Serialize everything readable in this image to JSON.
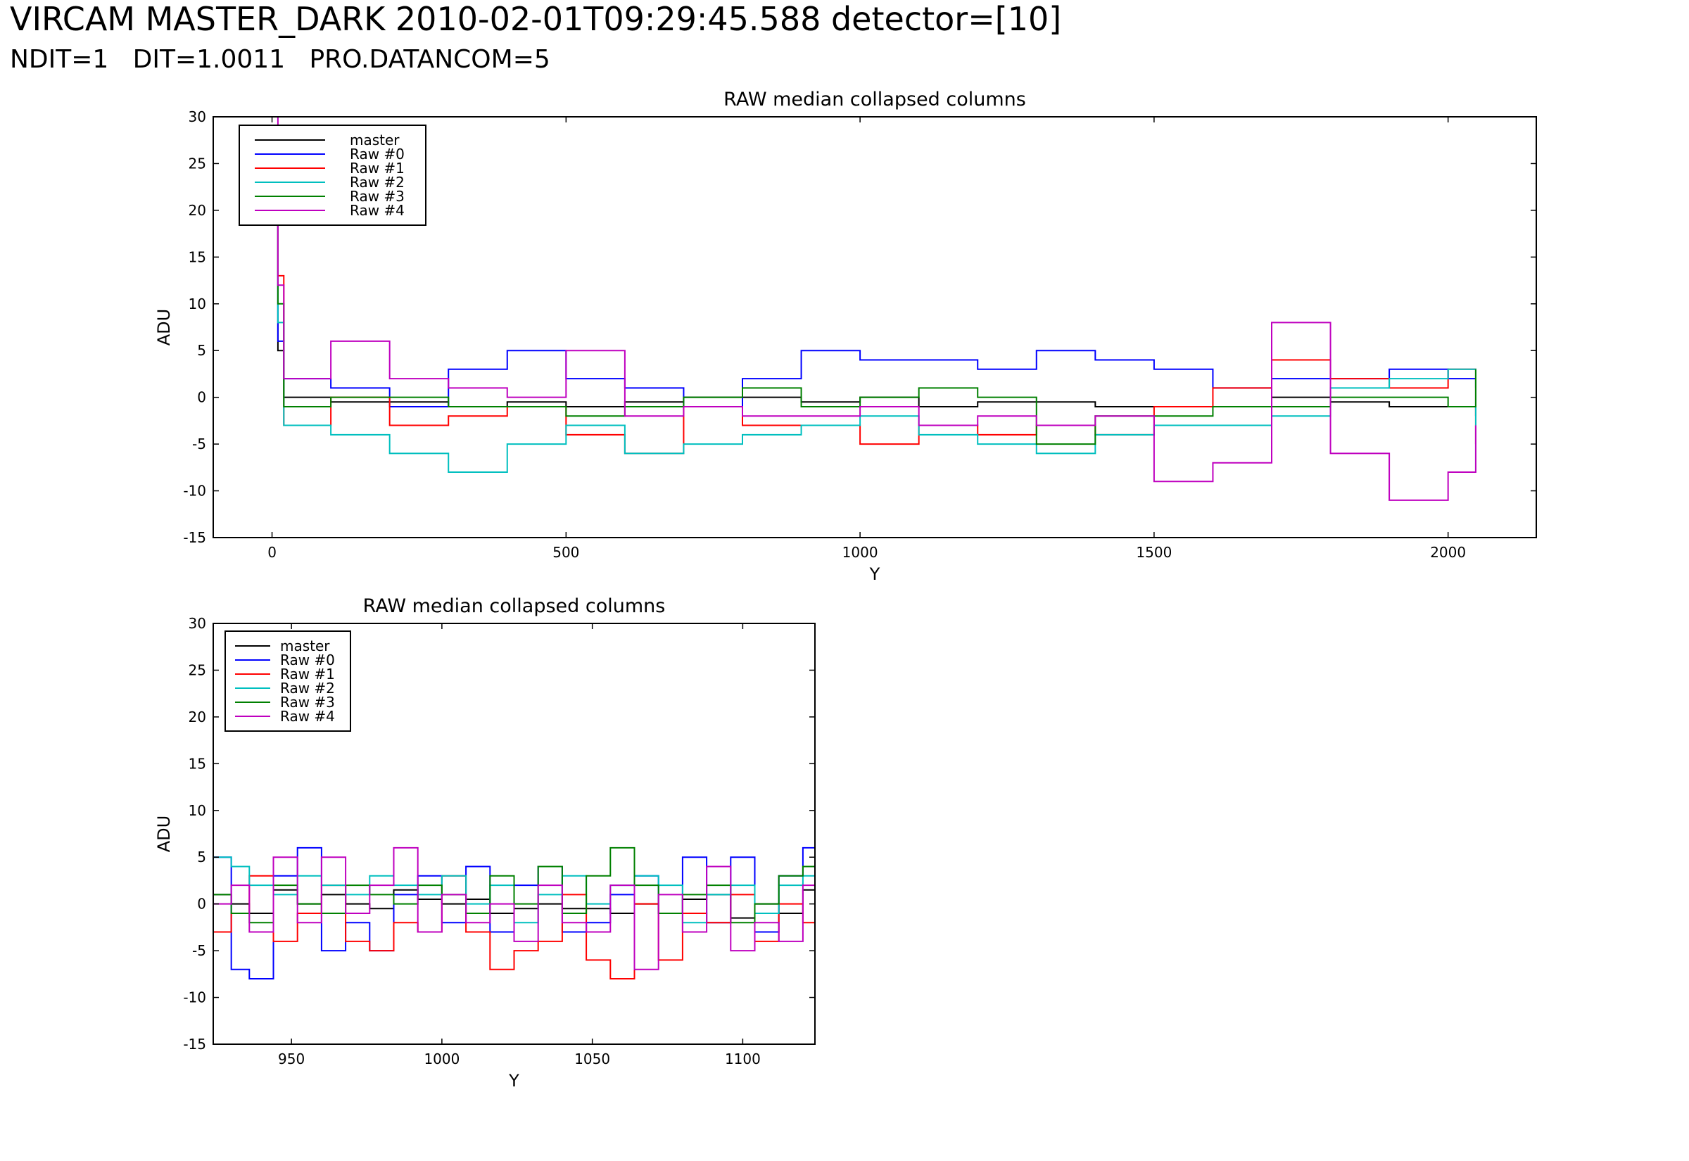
{
  "header": {
    "title": "VIRCAM MASTER_DARK 2010-02-01T09:29:45.588 detector=[10]",
    "subtitle": "NDIT=1   DIT=1.0011   PRO.DATANCOM=5"
  },
  "series_colors": {
    "master": "#000000",
    "Raw #0": "#0000ff",
    "Raw #1": "#ff0000",
    "Raw #2": "#00bfbf",
    "Raw #3": "#008000",
    "Raw #4": "#bf00bf"
  },
  "chart_data": [
    {
      "type": "line",
      "title": "RAW median collapsed columns",
      "xlabel": "Y",
      "ylabel": "ADU",
      "xlim": [
        -100,
        2150
      ],
      "ylim": [
        -15,
        30
      ],
      "xticks": [
        0,
        500,
        1000,
        1500,
        2000
      ],
      "yticks": [
        -15,
        -10,
        -5,
        0,
        5,
        10,
        15,
        20,
        25,
        30
      ],
      "legend_position": "upper-left",
      "legend_entries": [
        "master",
        "Raw #0",
        "Raw #1",
        "Raw #2",
        "Raw #3",
        "Raw #4"
      ],
      "series": [
        {
          "name": "master",
          "x": [
            0,
            10,
            20,
            100,
            200,
            300,
            400,
            500,
            600,
            700,
            800,
            900,
            1000,
            1100,
            1200,
            1300,
            1400,
            1500,
            1600,
            1700,
            1800,
            1900,
            2000,
            2047
          ],
          "values": [
            28,
            5,
            0,
            -0.5,
            -0.5,
            -1,
            -0.5,
            -1,
            -0.5,
            0,
            0,
            -0.5,
            0,
            -1,
            -0.5,
            -0.5,
            -1,
            -1,
            -1,
            0,
            -0.5,
            -1,
            -1,
            -2
          ]
        },
        {
          "name": "Raw #0",
          "x": [
            0,
            10,
            20,
            100,
            200,
            300,
            400,
            500,
            600,
            700,
            800,
            900,
            1000,
            1100,
            1200,
            1300,
            1400,
            1500,
            1600,
            1700,
            1800,
            1900,
            2000,
            2047
          ],
          "values": [
            29,
            6,
            2,
            1,
            -1,
            3,
            5,
            2,
            1,
            -1,
            2,
            5,
            4,
            4,
            3,
            5,
            4,
            3,
            1,
            2,
            2,
            3,
            2,
            1
          ]
        },
        {
          "name": "Raw #1",
          "x": [
            0,
            10,
            20,
            100,
            200,
            300,
            400,
            500,
            600,
            700,
            800,
            900,
            1000,
            1100,
            1200,
            1300,
            1400,
            1500,
            1600,
            1700,
            1800,
            1900,
            2000,
            2047
          ],
          "values": [
            29,
            13,
            -3,
            0,
            -3,
            -2,
            -1,
            -4,
            -6,
            -1,
            -3,
            -3,
            -5,
            -3,
            -4,
            -3,
            -4,
            -1,
            1,
            4,
            2,
            1,
            3,
            -5
          ]
        },
        {
          "name": "Raw #2",
          "x": [
            0,
            10,
            20,
            100,
            200,
            300,
            400,
            500,
            600,
            700,
            800,
            900,
            1000,
            1100,
            1200,
            1300,
            1400,
            1500,
            1600,
            1700,
            1800,
            1900,
            2000,
            2047
          ],
          "values": [
            29,
            8,
            -3,
            -4,
            -6,
            -8,
            -5,
            -3,
            -6,
            -5,
            -4,
            -3,
            -2,
            -4,
            -5,
            -6,
            -4,
            -3,
            -3,
            -2,
            1,
            2,
            3,
            -8
          ]
        },
        {
          "name": "Raw #3",
          "x": [
            0,
            10,
            20,
            100,
            200,
            300,
            400,
            500,
            600,
            700,
            800,
            900,
            1000,
            1100,
            1200,
            1300,
            1400,
            1500,
            1600,
            1700,
            1800,
            1900,
            2000,
            2047
          ],
          "values": [
            29,
            10,
            -1,
            0,
            0,
            -1,
            -1,
            -2,
            -1,
            0,
            1,
            -1,
            0,
            1,
            0,
            -5,
            -2,
            -2,
            -1,
            -1,
            0,
            0,
            -1,
            3
          ]
        },
        {
          "name": "Raw #4",
          "x": [
            0,
            10,
            20,
            100,
            200,
            300,
            400,
            500,
            600,
            700,
            800,
            900,
            1000,
            1100,
            1200,
            1300,
            1400,
            1500,
            1600,
            1700,
            1800,
            1900,
            2000,
            2047
          ],
          "values": [
            30,
            12,
            2,
            6,
            2,
            1,
            0,
            5,
            -2,
            -1,
            -2,
            -2,
            -1,
            -3,
            -2,
            -3,
            -2,
            -9,
            -7,
            8,
            -6,
            -11,
            -8,
            -3
          ]
        }
      ]
    },
    {
      "type": "line",
      "title": "RAW median collapsed columns",
      "xlabel": "Y",
      "ylabel": "ADU",
      "xlim": [
        924,
        1124
      ],
      "ylim": [
        -15,
        30
      ],
      "xticks": [
        950,
        1000,
        1050,
        1100
      ],
      "yticks": [
        -15,
        -10,
        -5,
        0,
        5,
        10,
        15,
        20,
        25,
        30
      ],
      "legend_position": "upper-left",
      "legend_entries": [
        "master",
        "Raw #0",
        "Raw #1",
        "Raw #2",
        "Raw #3",
        "Raw #4"
      ],
      "series": [
        {
          "name": "master",
          "x": [
            924,
            930,
            936,
            944,
            952,
            960,
            968,
            976,
            984,
            992,
            1000,
            1008,
            1016,
            1024,
            1032,
            1040,
            1048,
            1056,
            1064,
            1072,
            1080,
            1088,
            1096,
            1104,
            1112,
            1120,
            1124
          ],
          "values": [
            1,
            0,
            -1,
            1.5,
            0,
            1,
            0,
            -0.5,
            1.5,
            0.5,
            0,
            0.5,
            -1,
            -0.5,
            0,
            -0.5,
            -0.5,
            -1,
            0,
            -1,
            0.5,
            1,
            -1.5,
            0,
            -1,
            1.5,
            0
          ]
        },
        {
          "name": "Raw #0",
          "x": [
            924,
            930,
            936,
            944,
            952,
            960,
            968,
            976,
            984,
            992,
            1000,
            1008,
            1016,
            1024,
            1032,
            1040,
            1048,
            1056,
            1064,
            1072,
            1080,
            1088,
            1096,
            1104,
            1112,
            1120,
            1124
          ],
          "values": [
            5,
            -7,
            -8,
            3,
            6,
            -5,
            -2,
            -5,
            1,
            3,
            -2,
            4,
            -3,
            2,
            4,
            -3,
            -2,
            1,
            3,
            -1,
            5,
            -2,
            5,
            -3,
            3,
            6,
            -4
          ]
        },
        {
          "name": "Raw #1",
          "x": [
            924,
            930,
            936,
            944,
            952,
            960,
            968,
            976,
            984,
            992,
            1000,
            1008,
            1016,
            1024,
            1032,
            1040,
            1048,
            1056,
            1064,
            1072,
            1080,
            1088,
            1096,
            1104,
            1112,
            1120,
            1124
          ],
          "values": [
            -3,
            -1,
            3,
            -4,
            -1,
            2,
            -4,
            -5,
            -2,
            -3,
            3,
            -3,
            -7,
            -5,
            -4,
            1,
            -6,
            -8,
            0,
            -6,
            -1,
            -2,
            1,
            -4,
            0,
            -2,
            -2
          ]
        },
        {
          "name": "Raw #2",
          "x": [
            924,
            930,
            936,
            944,
            952,
            960,
            968,
            976,
            984,
            992,
            1000,
            1008,
            1016,
            1024,
            1032,
            1040,
            1048,
            1056,
            1064,
            1072,
            1080,
            1088,
            1096,
            1104,
            1112,
            1120,
            1124
          ],
          "values": [
            5,
            4,
            2,
            1,
            3,
            2,
            1,
            3,
            2,
            1,
            3,
            0,
            2,
            -2,
            1,
            3,
            0,
            2,
            3,
            2,
            -2,
            1,
            2,
            -1,
            2,
            3,
            2
          ]
        },
        {
          "name": "Raw #3",
          "x": [
            924,
            930,
            936,
            944,
            952,
            960,
            968,
            976,
            984,
            992,
            1000,
            1008,
            1016,
            1024,
            1032,
            1040,
            1048,
            1056,
            1064,
            1072,
            1080,
            1088,
            1096,
            1104,
            1112,
            1120,
            1124
          ],
          "values": [
            1,
            -1,
            -2,
            2,
            0,
            -1,
            2,
            1,
            0,
            2,
            1,
            -1,
            3,
            0,
            4,
            -1,
            3,
            6,
            2,
            -1,
            1,
            2,
            -2,
            0,
            3,
            4,
            0
          ]
        },
        {
          "name": "Raw #4",
          "x": [
            924,
            930,
            936,
            944,
            952,
            960,
            968,
            976,
            984,
            992,
            1000,
            1008,
            1016,
            1024,
            1032,
            1040,
            1048,
            1056,
            1064,
            1072,
            1080,
            1088,
            1096,
            1104,
            1112,
            1120,
            1124
          ],
          "values": [
            0,
            2,
            -3,
            5,
            -2,
            5,
            -1,
            2,
            6,
            -3,
            1,
            -2,
            0,
            -4,
            2,
            -2,
            -3,
            2,
            -7,
            1,
            -3,
            4,
            -5,
            -2,
            -4,
            2,
            1
          ]
        }
      ]
    }
  ]
}
